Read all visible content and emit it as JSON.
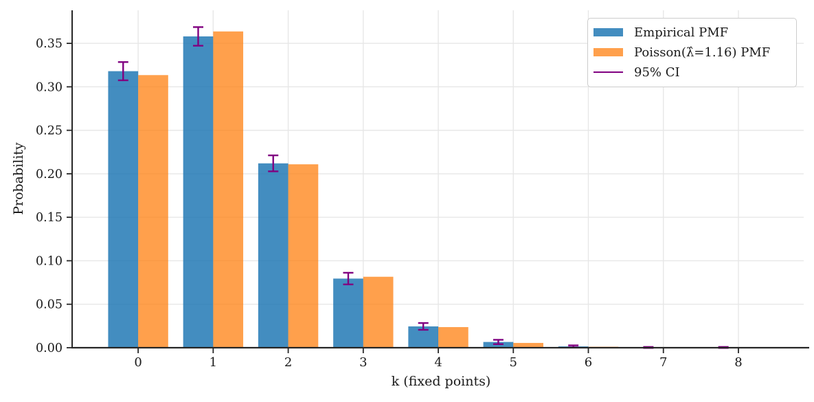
{
  "chart_data": {
    "type": "bar",
    "title": "",
    "xlabel": "k (fixed points)",
    "ylabel": "Probability",
    "categories": [
      "0",
      "1",
      "2",
      "3",
      "4",
      "5",
      "6",
      "7",
      "8"
    ],
    "x": [
      0,
      1,
      2,
      3,
      4,
      5,
      6,
      7,
      8
    ],
    "series": [
      {
        "key": "empirical",
        "name": "Empirical PMF",
        "base_color": "#1f77b4",
        "fill": "rgba(31,119,180,0.84)",
        "values": [
          0.318,
          0.358,
          0.212,
          0.0795,
          0.0245,
          0.0066,
          0.0015,
          0.0003,
          0.0003
        ]
      },
      {
        "key": "poisson",
        "name": "Poisson(λ̂=1.16) PMF",
        "base_color": "#ff7f0e",
        "fill": "rgba(255,127,14,0.74)",
        "values": [
          0.3135,
          0.3637,
          0.2109,
          0.0816,
          0.0237,
          0.0055,
          0.0011,
          0.0002,
          3e-05
        ]
      }
    ],
    "error_bars": {
      "name": "95% CI",
      "color": "#800080",
      "on_series": "Empirical PMF",
      "half_widths": [
        0.0105,
        0.0107,
        0.0092,
        0.0067,
        0.0039,
        0.0025,
        0.0012,
        0.0006,
        0.0006
      ]
    },
    "yticks": [
      "0.00",
      "0.05",
      "0.10",
      "0.15",
      "0.20",
      "0.25",
      "0.30",
      "0.35"
    ],
    "ylim": [
      0,
      0.388
    ],
    "xlim": [
      -0.88,
      8.87
    ],
    "bar_width": 0.4,
    "grid": true,
    "legend_position": "upper right",
    "colors": {
      "grid": "#e7e7e7",
      "spine": "#262626",
      "text": "#1a1a1a"
    }
  }
}
